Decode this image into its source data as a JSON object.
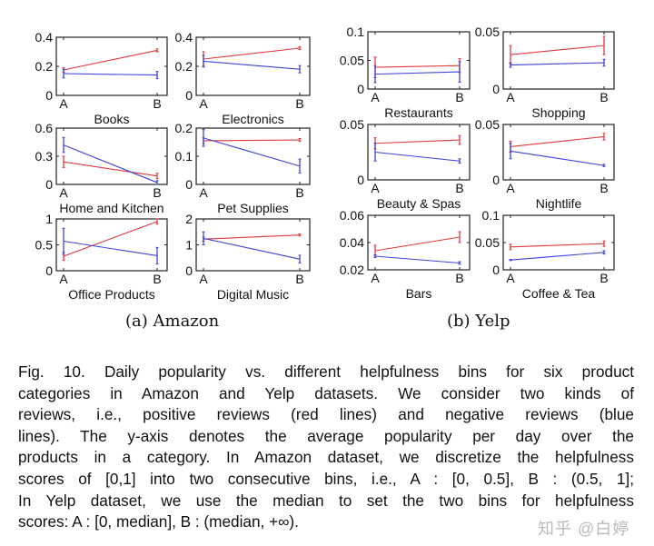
{
  "figure": {
    "subcaptions": [
      "(a) Amazon",
      "(b) Yelp"
    ],
    "caption_lines": [
      "Fig. 10. Daily popularity vs. different helpfulness bins for six product",
      "categories in Amazon and Yelp datasets. We consider two kinds of",
      "reviews, i.e., positive reviews (red lines) and negative reviews (blue",
      "lines). The y-axis denotes the average popularity per day over the",
      "products in a category. In Amazon dataset, we discretize the helpfulness",
      "scores of [0,1] into two consecutive bins, i.e., A : [0, 0.5], B : (0.5, 1];",
      "In Yelp dataset, we use the median to set the two bins for helpfulness",
      "scores: A : [0, median], B : (median, +∞)."
    ],
    "watermark": "知乎 @白婷"
  },
  "chart_data": [
    {
      "type": "line",
      "title": "Books",
      "group": "Amazon",
      "categories": [
        "A",
        "B"
      ],
      "ylim": [
        0,
        0.4
      ],
      "yticks": [
        "0",
        "0.2",
        "0.4"
      ],
      "ytick_values": [
        0,
        0.2,
        0.4
      ],
      "series": [
        {
          "name": "positive",
          "color": "#e0393e",
          "values": [
            0.175,
            0.31
          ],
          "err": [
            0.015,
            0.01
          ]
        },
        {
          "name": "negative",
          "color": "#3b45d6",
          "values": [
            0.15,
            0.14
          ],
          "err": [
            0.03,
            0.025
          ]
        }
      ]
    },
    {
      "type": "line",
      "title": "Electronics",
      "group": "Amazon",
      "categories": [
        "A",
        "B"
      ],
      "ylim": [
        0,
        0.4
      ],
      "yticks": [
        "0",
        "0.2",
        "0.4"
      ],
      "ytick_values": [
        0,
        0.2,
        0.4
      ],
      "series": [
        {
          "name": "positive",
          "color": "#e0393e",
          "values": [
            0.25,
            0.325
          ],
          "err": [
            0.05,
            0.01
          ]
        },
        {
          "name": "negative",
          "color": "#3b45d6",
          "values": [
            0.235,
            0.18
          ],
          "err": [
            0.04,
            0.025
          ]
        }
      ]
    },
    {
      "type": "line",
      "title": "Home and Kitchen",
      "group": "Amazon",
      "categories": [
        "A",
        "B"
      ],
      "ylim": [
        0,
        0.6
      ],
      "yticks": [
        "0",
        "0.3",
        "0.6"
      ],
      "ytick_values": [
        0,
        0.3,
        0.6
      ],
      "series": [
        {
          "name": "positive",
          "color": "#e0393e",
          "values": [
            0.24,
            0.09
          ],
          "err": [
            0.06,
            0.03
          ]
        },
        {
          "name": "negative",
          "color": "#3b45d6",
          "values": [
            0.42,
            0.02
          ],
          "err": [
            0.08,
            0.02
          ]
        }
      ]
    },
    {
      "type": "line",
      "title": "Pet Supplies",
      "group": "Amazon",
      "categories": [
        "A",
        "B"
      ],
      "ylim": [
        0,
        0.2
      ],
      "yticks": [
        "0",
        "0.1",
        "0.2"
      ],
      "ytick_values": [
        0,
        0.1,
        0.2
      ],
      "series": [
        {
          "name": "positive",
          "color": "#e0393e",
          "values": [
            0.155,
            0.158
          ],
          "err": [
            0.01,
            0.005
          ]
        },
        {
          "name": "negative",
          "color": "#3b45d6",
          "values": [
            0.165,
            0.065
          ],
          "err": [
            0.03,
            0.025
          ]
        }
      ]
    },
    {
      "type": "line",
      "title": "Office Products",
      "group": "Amazon",
      "categories": [
        "A",
        "B"
      ],
      "ylim": [
        0,
        1
      ],
      "yticks": [
        "0",
        "0.5",
        "1"
      ],
      "ytick_values": [
        0,
        0.5,
        1
      ],
      "series": [
        {
          "name": "positive",
          "color": "#e0393e",
          "values": [
            0.28,
            0.95
          ],
          "err": [
            0.08,
            0.05
          ]
        },
        {
          "name": "negative",
          "color": "#3b45d6",
          "values": [
            0.57,
            0.29
          ],
          "err": [
            0.25,
            0.16
          ]
        }
      ]
    },
    {
      "type": "line",
      "title": "Digital Music",
      "group": "Amazon",
      "categories": [
        "A",
        "B"
      ],
      "ylim": [
        0,
        2
      ],
      "yticks": [
        "0",
        "1",
        "2"
      ],
      "ytick_values": [
        0,
        1,
        2
      ],
      "series": [
        {
          "name": "positive",
          "color": "#e0393e",
          "values": [
            1.22,
            1.38
          ],
          "err": [
            0.08,
            0.04
          ]
        },
        {
          "name": "negative",
          "color": "#3b45d6",
          "values": [
            1.25,
            0.45
          ],
          "err": [
            0.25,
            0.15
          ]
        }
      ]
    },
    {
      "type": "line",
      "title": "Restaurants",
      "group": "Yelp",
      "categories": [
        "A",
        "B"
      ],
      "ylim": [
        0,
        0.1
      ],
      "yticks": [
        "0",
        "0.05",
        "0.1"
      ],
      "ytick_values": [
        0,
        0.05,
        0.1
      ],
      "series": [
        {
          "name": "positive",
          "color": "#e0393e",
          "values": [
            0.038,
            0.041
          ],
          "err": [
            0.018,
            0.012
          ]
        },
        {
          "name": "negative",
          "color": "#3b45d6",
          "values": [
            0.026,
            0.03
          ],
          "err": [
            0.015,
            0.018
          ]
        }
      ]
    },
    {
      "type": "line",
      "title": "Shopping",
      "group": "Yelp",
      "categories": [
        "A",
        "B"
      ],
      "ylim": [
        0,
        0.05
      ],
      "yticks": [
        "0",
        "0.05"
      ],
      "ytick_values": [
        0,
        0.05
      ],
      "series": [
        {
          "name": "positive",
          "color": "#e0393e",
          "values": [
            0.03,
            0.038
          ],
          "err": [
            0.008,
            0.008
          ]
        },
        {
          "name": "negative",
          "color": "#3b45d6",
          "values": [
            0.021,
            0.023
          ],
          "err": [
            0.002,
            0.003
          ]
        }
      ]
    },
    {
      "type": "line",
      "title": "Beauty & Spas",
      "group": "Yelp",
      "categories": [
        "A",
        "B"
      ],
      "ylim": [
        0,
        0.05
      ],
      "yticks": [
        "0",
        "0.05"
      ],
      "ytick_values": [
        0,
        0.05
      ],
      "series": [
        {
          "name": "positive",
          "color": "#e0393e",
          "values": [
            0.033,
            0.036
          ],
          "err": [
            0.005,
            0.004
          ]
        },
        {
          "name": "negative",
          "color": "#3b45d6",
          "values": [
            0.025,
            0.017
          ],
          "err": [
            0.008,
            0.002
          ]
        }
      ]
    },
    {
      "type": "line",
      "title": "Nightlife",
      "group": "Yelp",
      "categories": [
        "A",
        "B"
      ],
      "ylim": [
        0,
        0.05
      ],
      "yticks": [
        "0",
        "0.05"
      ],
      "ytick_values": [
        0,
        0.05
      ],
      "series": [
        {
          "name": "positive",
          "color": "#e0393e",
          "values": [
            0.03,
            0.039
          ],
          "err": [
            0.005,
            0.003
          ]
        },
        {
          "name": "negative",
          "color": "#3b45d6",
          "values": [
            0.026,
            0.013
          ],
          "err": [
            0.007,
            0.001
          ]
        }
      ]
    },
    {
      "type": "line",
      "title": "Bars",
      "group": "Yelp",
      "categories": [
        "A",
        "B"
      ],
      "ylim": [
        0.02,
        0.06
      ],
      "yticks": [
        "0.02",
        "0.04",
        "0.06"
      ],
      "ytick_values": [
        0.02,
        0.04,
        0.06
      ],
      "series": [
        {
          "name": "positive",
          "color": "#e0393e",
          "values": [
            0.034,
            0.044
          ],
          "err": [
            0.004,
            0.004
          ]
        },
        {
          "name": "negative",
          "color": "#3b45d6",
          "values": [
            0.03,
            0.025
          ],
          "err": [
            0.001,
            0.001
          ]
        }
      ]
    },
    {
      "type": "line",
      "title": "Coffee & Tea",
      "group": "Yelp",
      "categories": [
        "A",
        "B"
      ],
      "ylim": [
        0,
        0.1
      ],
      "yticks": [
        "0",
        "0.05",
        "0.1"
      ],
      "ytick_values": [
        0,
        0.05,
        0.1
      ],
      "series": [
        {
          "name": "positive",
          "color": "#e0393e",
          "values": [
            0.042,
            0.048
          ],
          "err": [
            0.005,
            0.005
          ]
        },
        {
          "name": "negative",
          "color": "#3b45d6",
          "values": [
            0.018,
            0.032
          ],
          "err": [
            0.001,
            0.003
          ]
        }
      ]
    }
  ]
}
